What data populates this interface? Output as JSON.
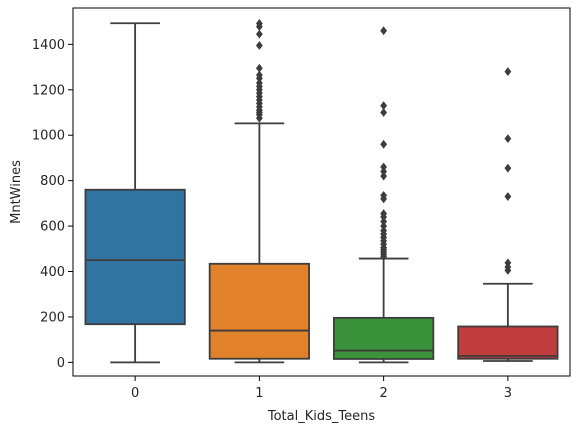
{
  "chart_data": {
    "type": "box",
    "xlabel": "Total_Kids_Teens",
    "ylabel": "MntWines",
    "ylim": [
      -60,
      1560
    ],
    "yticks": [
      0,
      200,
      400,
      600,
      800,
      1000,
      1200,
      1400
    ],
    "legend": "none",
    "grid": false,
    "categories": [
      "0",
      "1",
      "2",
      "3"
    ],
    "boxes": [
      {
        "category": "0",
        "color": "#3274a1",
        "whisker_low": 0,
        "q1": 168,
        "median": 450,
        "q3": 760,
        "whisker_high": 1493,
        "outliers": []
      },
      {
        "category": "1",
        "color": "#e1812c",
        "whisker_low": 0,
        "q1": 16,
        "median": 140,
        "q3": 434,
        "whisker_high": 1052,
        "outliers": [
          1075,
          1090,
          1100,
          1110,
          1125,
          1140,
          1155,
          1170,
          1185,
          1200,
          1215,
          1230,
          1250,
          1265,
          1295,
          1395,
          1445,
          1478,
          1492
        ]
      },
      {
        "category": "2",
        "color": "#3a923a",
        "whisker_low": 0,
        "q1": 15,
        "median": 52,
        "q3": 196,
        "whisker_high": 457,
        "outliers": [
          465,
          475,
          485,
          495,
          505,
          520,
          535,
          550,
          565,
          580,
          600,
          620,
          640,
          655,
          720,
          735,
          820,
          840,
          860,
          960,
          1100,
          1130,
          1460
        ]
      },
      {
        "category": "3",
        "color": "#c03d3e",
        "whisker_low": 6,
        "q1": 16,
        "median": 28,
        "q3": 158,
        "whisker_high": 346,
        "outliers": [
          405,
          420,
          438,
          730,
          855,
          985,
          1280
        ]
      }
    ]
  }
}
